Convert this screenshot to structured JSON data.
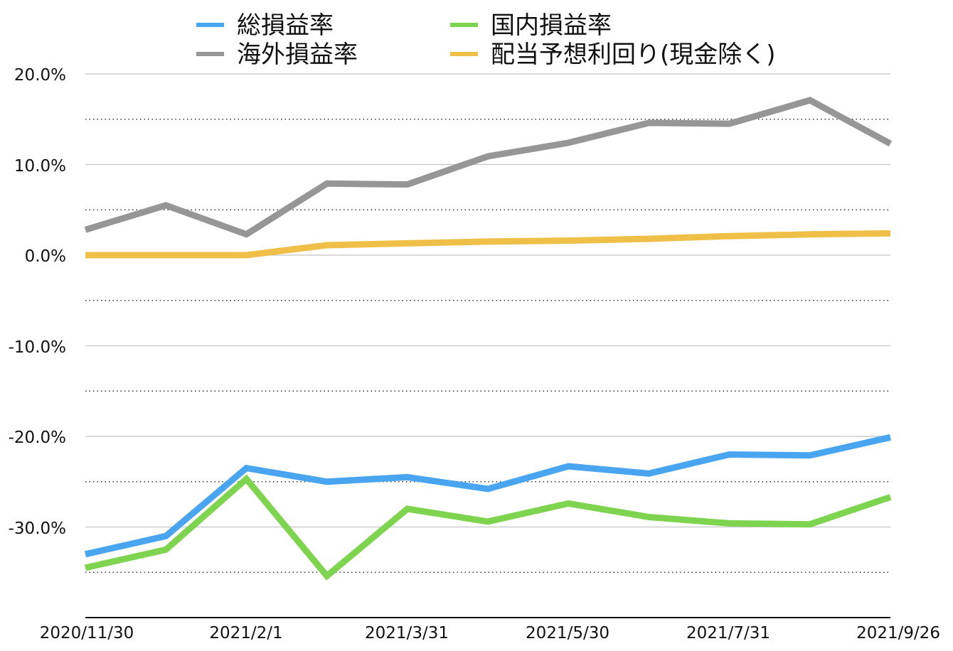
{
  "chart_data": {
    "type": "line",
    "title": "",
    "xlabel": "",
    "ylabel": "",
    "x": [
      "2020/11/30",
      "2020/12/31",
      "2021/2/1",
      "2021/3/1",
      "2021/3/31",
      "2021/4/30",
      "2021/5/30",
      "2021/6/30",
      "2021/7/31",
      "2021/8/29",
      "2021/9/26"
    ],
    "x_tick_labels": [
      "2020/11/30",
      "2021/2/1",
      "2021/3/31",
      "2021/5/30",
      "2021/7/31",
      "2021/9/26"
    ],
    "x_tick_indices": [
      0,
      2,
      4,
      6,
      8,
      10
    ],
    "ylim": [
      -40,
      20
    ],
    "y_ticks": [
      20,
      10,
      0,
      -10,
      -20,
      -30
    ],
    "y_tick_labels": [
      "20.0%",
      "10.0%",
      "0.0%",
      "-10.0%",
      "-20.0%",
      "-30.0%"
    ],
    "y_minor_ticks": [
      15,
      5,
      -5,
      -15,
      -25,
      -35
    ],
    "grid": true,
    "legend_position": "top",
    "series": [
      {
        "name": "総損益率",
        "color": "#4aa5f0",
        "values": [
          -33.0,
          -31.0,
          -23.5,
          -25.0,
          -24.5,
          -25.8,
          -23.3,
          -24.1,
          -22.0,
          -22.1,
          -20.1
        ]
      },
      {
        "name": "国内損益率",
        "color": "#7ed44e",
        "values": [
          -34.5,
          -32.5,
          -24.7,
          -35.4,
          -28.0,
          -29.4,
          -27.4,
          -28.9,
          -29.6,
          -29.7,
          -26.7
        ]
      },
      {
        "name": "海外損益率",
        "color": "#969696",
        "values": [
          2.8,
          5.5,
          2.3,
          7.9,
          7.8,
          10.9,
          12.4,
          14.6,
          14.5,
          17.1,
          12.3
        ]
      },
      {
        "name": "配当予想利回り(現金除く)",
        "color": "#f0bf48",
        "values": [
          0.0,
          0.0,
          0.0,
          1.1,
          1.3,
          1.5,
          1.6,
          1.8,
          2.1,
          2.3,
          2.4
        ]
      }
    ]
  }
}
